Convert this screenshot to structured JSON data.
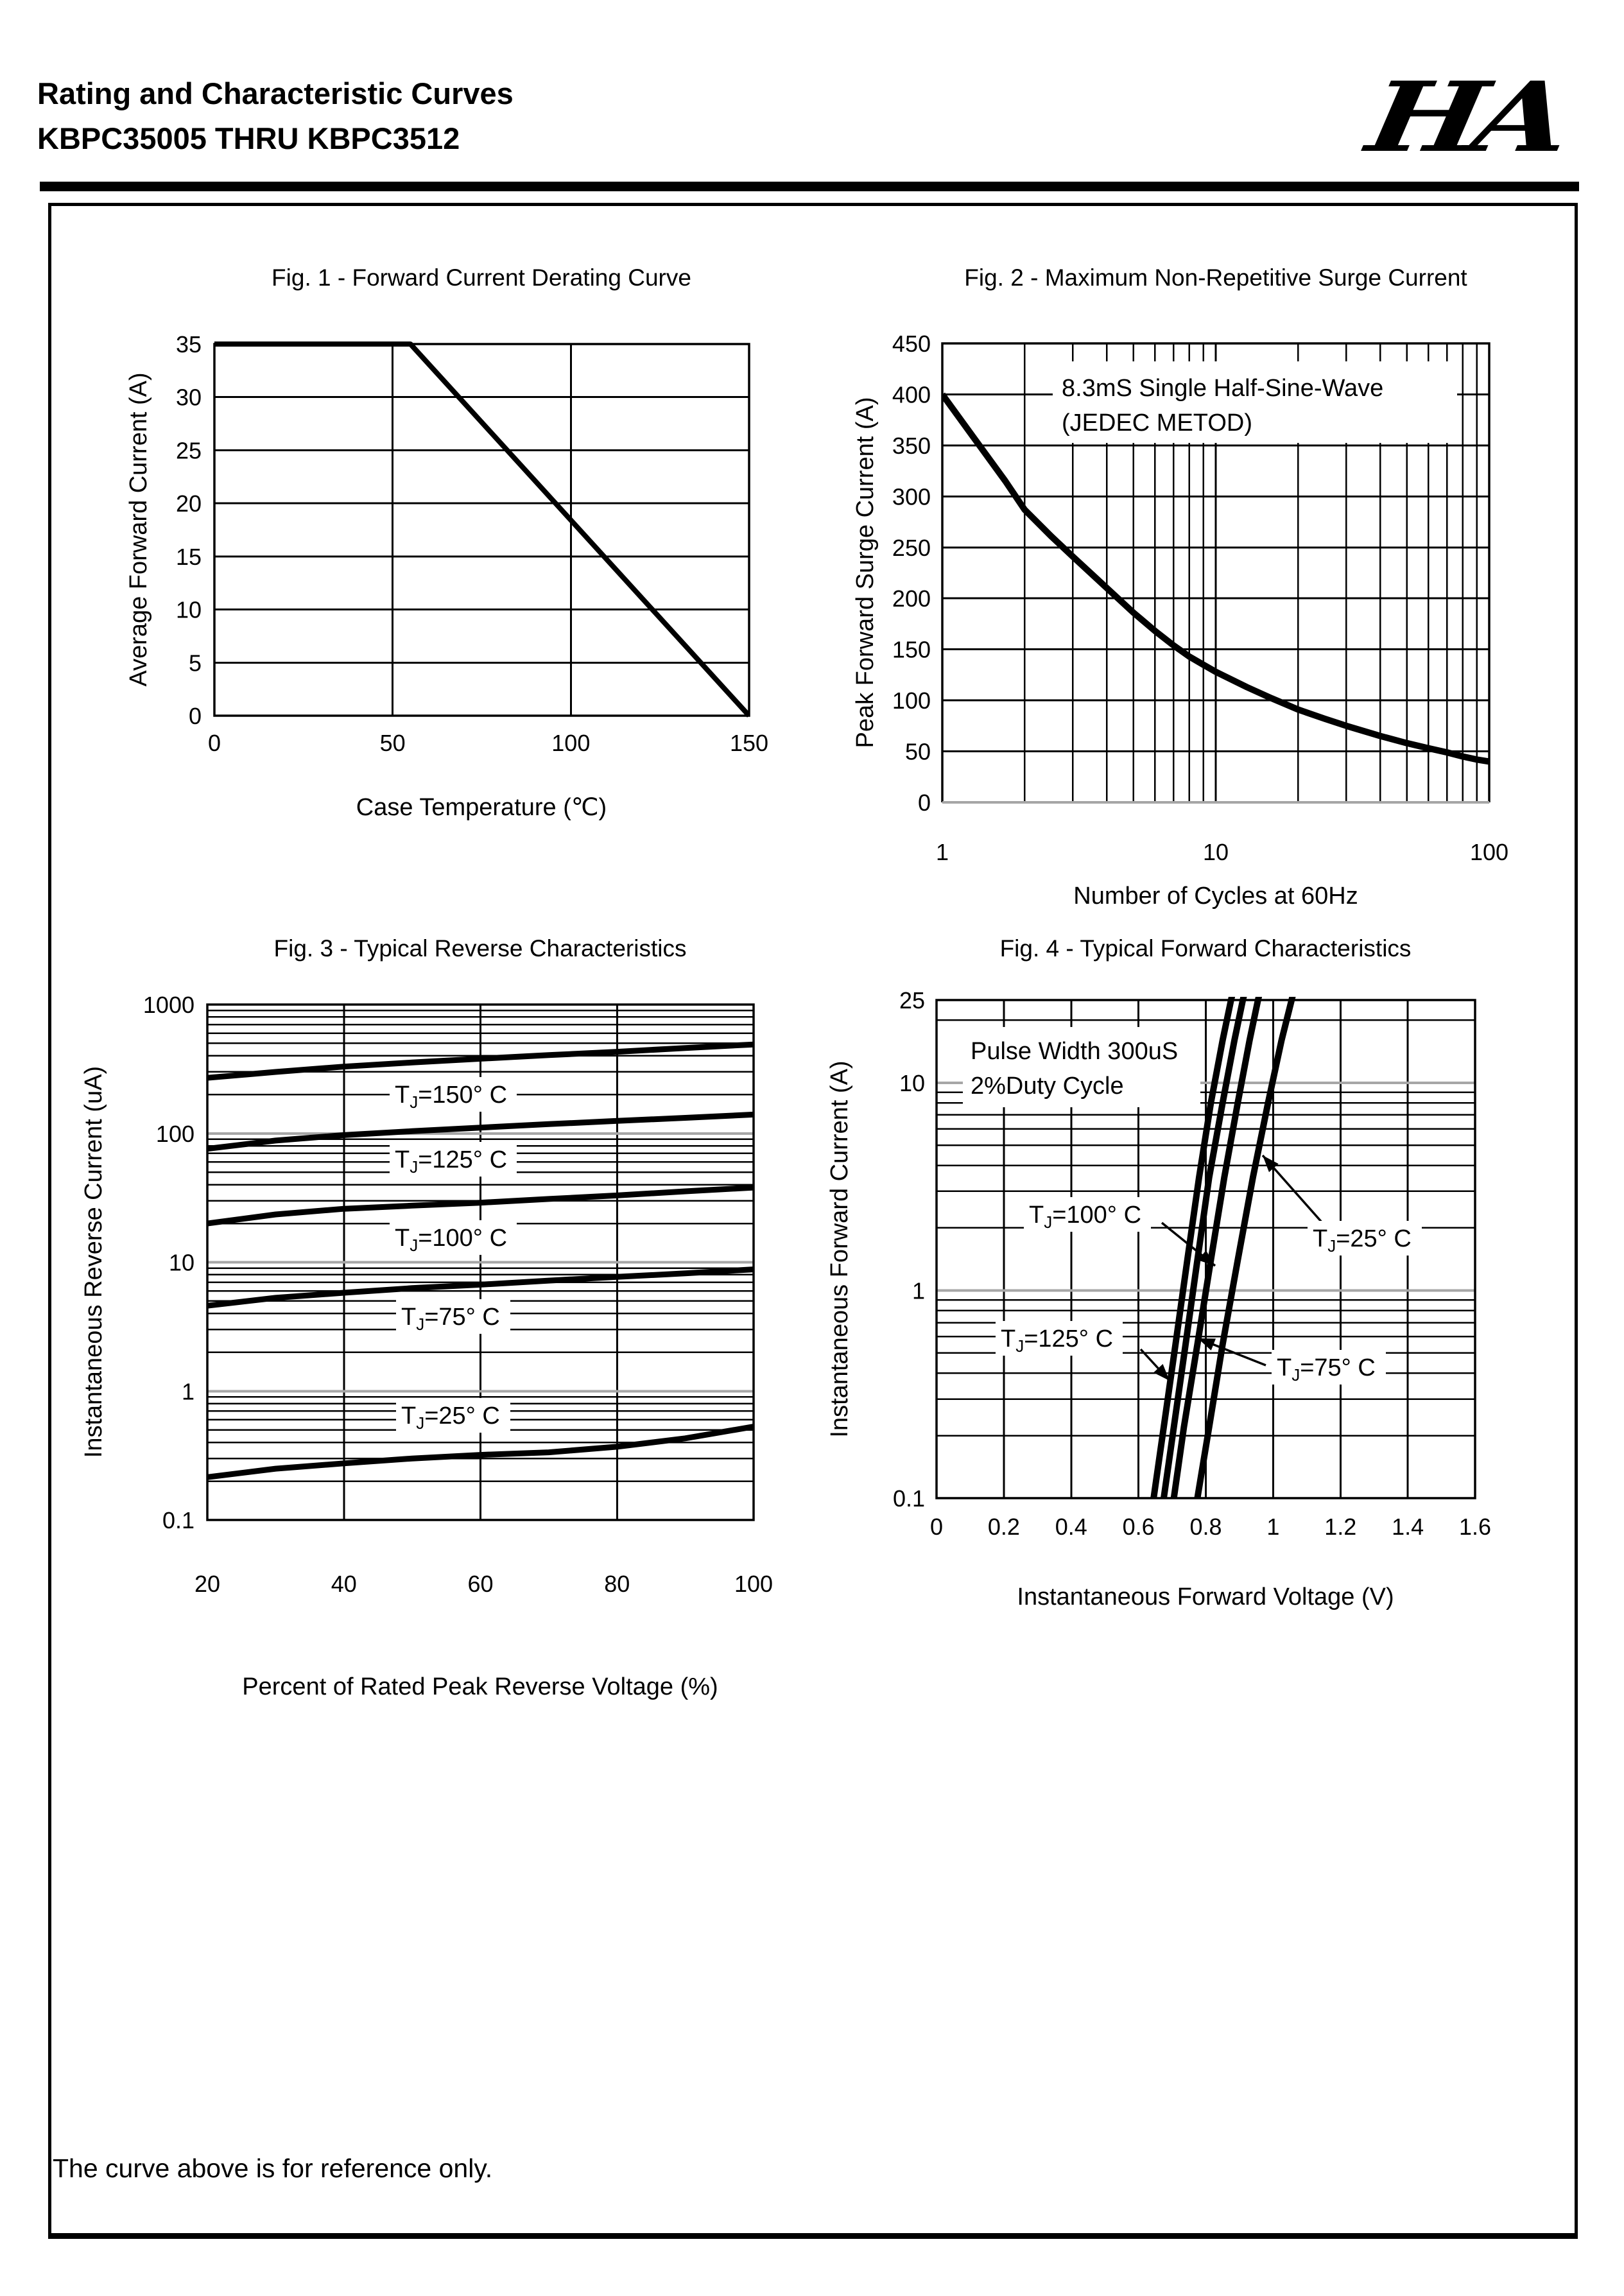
{
  "page": {
    "header": {
      "line1": "Rating and Characteristic Curves",
      "line2": "KBPC35005 THRU KBPC3512",
      "logo": "HA"
    },
    "footer": {
      "note": "The curve above is for reference only."
    }
  },
  "chart_data": [
    {
      "id": "fig1",
      "type": "line",
      "title": "Fig. 1 - Forward Current Derating Curve",
      "xlabel": "Case Temperature (℃)",
      "ylabel": "Average Forward Current (A)",
      "x_axis": {
        "scale": "linear",
        "min": 0,
        "max": 150,
        "tick_values": [
          0,
          50,
          100,
          150
        ],
        "tick_labels": [
          "0",
          "50",
          "100",
          "150"
        ],
        "gridlines": [
          50,
          100
        ]
      },
      "y_axis": {
        "scale": "linear",
        "min": 0,
        "max": 35,
        "tick_values": [
          35,
          30,
          25,
          20,
          15,
          10,
          5,
          0
        ],
        "tick_labels": [
          "35",
          "30",
          "25",
          "20",
          "15",
          "10",
          "5",
          "0"
        ],
        "gridlines": [
          5,
          10,
          15,
          20,
          25,
          30
        ]
      },
      "series": [
        {
          "name": "forward-current-derating",
          "points": [
            [
              0,
              35
            ],
            [
              55,
              35
            ],
            [
              150,
              0
            ]
          ]
        }
      ]
    },
    {
      "id": "fig2",
      "type": "line",
      "title": "Fig. 2 - Maximum Non-Repetitive Surge Current",
      "xlabel": "Number of Cycles at 60Hz",
      "ylabel": "Peak Forward Surge Current (A)",
      "x_axis": {
        "scale": "log",
        "min": 1,
        "max": 100,
        "tick_values": [
          1,
          10,
          100
        ],
        "tick_labels": [
          "1",
          "10",
          "100"
        ],
        "gridlines": "log"
      },
      "y_axis": {
        "scale": "linear",
        "min": 0,
        "max": 450,
        "tick_values": [
          450,
          400,
          350,
          300,
          250,
          200,
          150,
          100,
          50,
          0
        ],
        "tick_labels": [
          "450",
          "400",
          "350",
          "300",
          "250",
          "200",
          "150",
          "100",
          "50",
          "0"
        ],
        "gridlines": [
          50,
          100,
          150,
          200,
          250,
          300,
          350,
          400
        ]
      },
      "annotation": {
        "lines": [
          "8.3mS Single Half-Sine-Wave",
          "(JEDEC METOD)"
        ]
      },
      "series": [
        {
          "name": "surge-current",
          "points": [
            [
              1,
              400
            ],
            [
              1.3,
              358
            ],
            [
              1.7,
              315
            ],
            [
              2,
              287
            ],
            [
              2.5,
              261
            ],
            [
              3,
              241
            ],
            [
              4,
              210
            ],
            [
              5,
              186
            ],
            [
              6,
              168
            ],
            [
              7,
              154
            ],
            [
              8,
              143
            ],
            [
              9,
              135
            ],
            [
              10,
              128
            ],
            [
              13,
              113
            ],
            [
              16,
              102
            ],
            [
              20,
              91
            ],
            [
              25,
              82
            ],
            [
              30,
              75
            ],
            [
              40,
              65
            ],
            [
              50,
              58
            ],
            [
              60,
              53
            ],
            [
              70,
              49
            ],
            [
              80,
              45
            ],
            [
              90,
              42
            ],
            [
              100,
              40
            ]
          ]
        }
      ]
    },
    {
      "id": "fig3",
      "type": "line",
      "title": "Fig. 3 - Typical Reverse Characteristics",
      "xlabel": "Percent of Rated Peak Reverse Voltage (%)",
      "ylabel": "Instantaneous Reverse Current (uA)",
      "x_axis": {
        "scale": "linear",
        "min": 20,
        "max": 100,
        "tick_values": [
          20,
          40,
          60,
          80,
          100
        ],
        "tick_labels": [
          "20",
          "40",
          "60",
          "80",
          "100"
        ],
        "gridlines": [
          40,
          60,
          80
        ]
      },
      "y_axis": {
        "scale": "log",
        "min": 0.1,
        "max": 1000,
        "tick_values": [
          1000,
          100,
          10,
          1,
          0.1
        ],
        "tick_labels": [
          "1000",
          "100",
          "10",
          "1",
          "0.1"
        ],
        "gridlines": "log",
        "major_gray": true
      },
      "series": [
        {
          "name": "T_J=150° C",
          "points": [
            [
              20,
              270
            ],
            [
              30,
              300
            ],
            [
              40,
              330
            ],
            [
              50,
              355
            ],
            [
              60,
              380
            ],
            [
              70,
              405
            ],
            [
              80,
              430
            ],
            [
              90,
              460
            ],
            [
              100,
              490
            ]
          ]
        },
        {
          "name": "T_J=125° C",
          "points": [
            [
              20,
              76
            ],
            [
              30,
              88
            ],
            [
              40,
              97
            ],
            [
              50,
              104
            ],
            [
              60,
              111
            ],
            [
              70,
              118
            ],
            [
              80,
              125
            ],
            [
              90,
              132
            ],
            [
              100,
              140
            ]
          ]
        },
        {
          "name": "T_J=100° C",
          "points": [
            [
              20,
              20
            ],
            [
              30,
              23.5
            ],
            [
              40,
              26
            ],
            [
              50,
              27.5
            ],
            [
              60,
              29
            ],
            [
              70,
              31
            ],
            [
              80,
              33
            ],
            [
              90,
              35.5
            ],
            [
              100,
              38
            ]
          ]
        },
        {
          "name": "T_J=75° C",
          "points": [
            [
              20,
              4.6
            ],
            [
              30,
              5.3
            ],
            [
              40,
              5.8
            ],
            [
              50,
              6.3
            ],
            [
              60,
              6.7
            ],
            [
              70,
              7.2
            ],
            [
              80,
              7.7
            ],
            [
              90,
              8.2
            ],
            [
              100,
              8.8
            ]
          ]
        },
        {
          "name": "T_J=25° C",
          "points": [
            [
              20,
              0.215
            ],
            [
              30,
              0.25
            ],
            [
              40,
              0.275
            ],
            [
              50,
              0.3
            ],
            [
              60,
              0.32
            ],
            [
              70,
              0.335
            ],
            [
              80,
              0.37
            ],
            [
              90,
              0.43
            ],
            [
              100,
              0.53
            ]
          ]
        }
      ],
      "labels": [
        "T_J=150° C",
        "T_J=125° C",
        "T_J=100° C",
        "T_J=75° C",
        "T_J=25° C"
      ]
    },
    {
      "id": "fig4",
      "type": "line",
      "title": "Fig. 4 - Typical Forward Characteristics",
      "xlabel": "Instantaneous Forward Voltage (V)",
      "ylabel": "Instantaneous Forward Current (A)",
      "x_axis": {
        "scale": "linear",
        "min": 0,
        "max": 1.6,
        "tick_values": [
          0,
          0.2,
          0.4,
          0.6,
          0.8,
          1,
          1.2,
          1.4,
          1.6
        ],
        "tick_labels": [
          "0",
          "0.2",
          "0.4",
          "0.6",
          "0.8",
          "1",
          "1.2",
          "1.4",
          "1.6"
        ],
        "gridlines": [
          0.2,
          0.4,
          0.6,
          0.8,
          1,
          1.2,
          1.4
        ]
      },
      "y_axis": {
        "scale": "log",
        "min": 0.1,
        "max": 25,
        "tick_values": [
          25,
          10,
          1,
          0.1
        ],
        "tick_labels": [
          "25",
          "10",
          "1",
          "0.1"
        ],
        "gridlines": "log",
        "major_gray": true
      },
      "annotation": {
        "lines": [
          "Pulse Width 300uS",
          "2%Duty Cycle"
        ]
      },
      "series": [
        {
          "name": "T_J=125° C",
          "points": [
            [
              0.645,
              0.1
            ],
            [
              0.675,
              0.22
            ],
            [
              0.71,
              0.55
            ],
            [
              0.745,
              1.4
            ],
            [
              0.78,
              3.5
            ],
            [
              0.815,
              8
            ],
            [
              0.85,
              16
            ],
            [
              0.875,
              25
            ],
            [
              0.895,
              34
            ]
          ]
        },
        {
          "name": "T_J=100° C",
          "points": [
            [
              0.675,
              0.1
            ],
            [
              0.705,
              0.22
            ],
            [
              0.74,
              0.55
            ],
            [
              0.775,
              1.4
            ],
            [
              0.81,
              3.5
            ],
            [
              0.85,
              8
            ],
            [
              0.885,
              16
            ],
            [
              0.91,
              25
            ],
            [
              0.93,
              34
            ]
          ]
        },
        {
          "name": "T_J=75° C",
          "points": [
            [
              0.705,
              0.1
            ],
            [
              0.735,
              0.22
            ],
            [
              0.775,
              0.55
            ],
            [
              0.815,
              1.4
            ],
            [
              0.855,
              3.5
            ],
            [
              0.895,
              8
            ],
            [
              0.93,
              16
            ],
            [
              0.955,
              25
            ],
            [
              0.975,
              34
            ]
          ]
        },
        {
          "name": "T_J=25° C",
          "points": [
            [
              0.775,
              0.1
            ],
            [
              0.81,
              0.22
            ],
            [
              0.85,
              0.55
            ],
            [
              0.895,
              1.4
            ],
            [
              0.94,
              3.5
            ],
            [
              0.985,
              8
            ],
            [
              1.025,
              16
            ],
            [
              1.055,
              25
            ],
            [
              1.075,
              34
            ]
          ]
        }
      ],
      "labels": [
        "T_J=100° C",
        "T_J=25° C",
        "T_J=125° C",
        "T_J=75° C"
      ]
    }
  ]
}
